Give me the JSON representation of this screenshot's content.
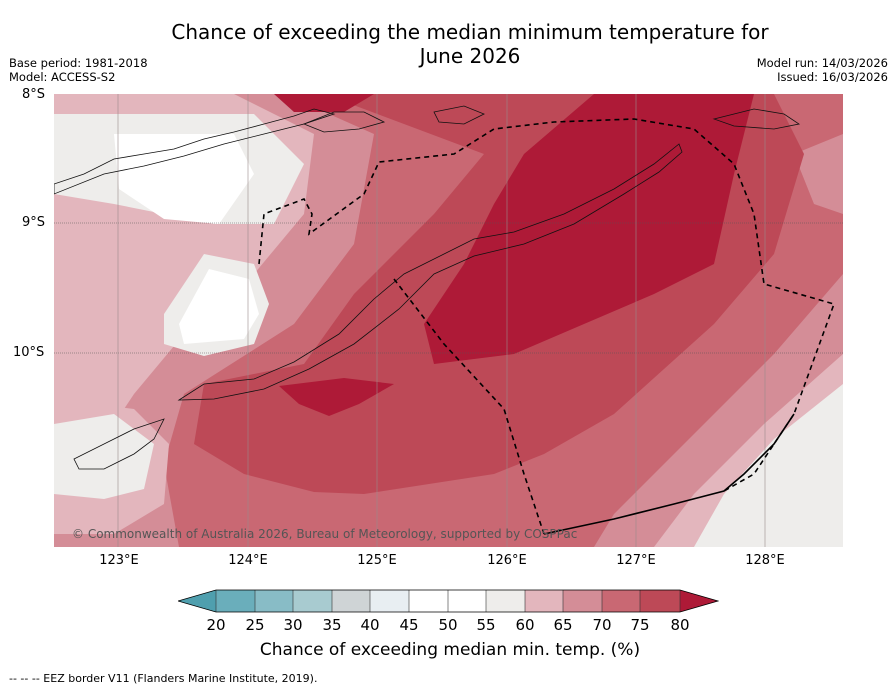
{
  "title_line1": "Chance of exceeding the median minimum temperature for",
  "title_line2": "June 2026",
  "base_period": "Base period: 1981-2018",
  "model": "Model: ACCESS-S2",
  "model_run": "Model run: 14/03/2026",
  "issued": "Issued: 16/03/2026",
  "lat_labels": [
    "8°S",
    "9°S",
    "10°S"
  ],
  "lon_labels": [
    "123°E",
    "124°E",
    "125°E",
    "126°E",
    "127°E",
    "128°E"
  ],
  "credit": "© Commonwealth of Australia 2026, Bureau of Meteorology, supported by COSPPac",
  "colorbar": {
    "ticks": [
      "20",
      "25",
      "30",
      "35",
      "40",
      "45",
      "50",
      "55",
      "60",
      "65",
      "70",
      "75",
      "80"
    ],
    "colors": [
      "#4f9fae",
      "#6aaebb",
      "#88bcc6",
      "#a8cbd0",
      "#cfd4d6",
      "#e8eef2",
      "#ffffff",
      "#ffffff",
      "#eeedeb",
      "#e3b6bd",
      "#d48d97",
      "#c96873",
      "#bd4957",
      "#ae1a37"
    ],
    "label": "Chance of exceeding median min. temp. (%)"
  },
  "footer": "--  --  -- EEZ border V11 (Flanders Marine Institute, 2019).",
  "chart_data": {
    "type": "heatmap",
    "variable": "Chance of exceeding median minimum temperature (%)",
    "period": "June 2026",
    "lon_range": [
      122.5,
      128.6
    ],
    "lat_range": [
      -11.5,
      -8.0
    ],
    "contour_levels": [
      20,
      25,
      30,
      35,
      40,
      45,
      50,
      55,
      60,
      65,
      70,
      75,
      80
    ],
    "regions": [
      {
        "name": "north-central Timor Sea band",
        "approx_value": "above 80"
      },
      {
        "name": "south of Timor Sea (around 124.5°E, 10.3°S)",
        "approx_value": "above 80"
      },
      {
        "name": "Savu Sea / central Timor",
        "approx_value": "70-80"
      },
      {
        "name": "west Timor island interior",
        "approx_value": "55-65"
      },
      {
        "name": "southeast near 128°E, 11°S",
        "approx_value": "55-60"
      }
    ]
  }
}
